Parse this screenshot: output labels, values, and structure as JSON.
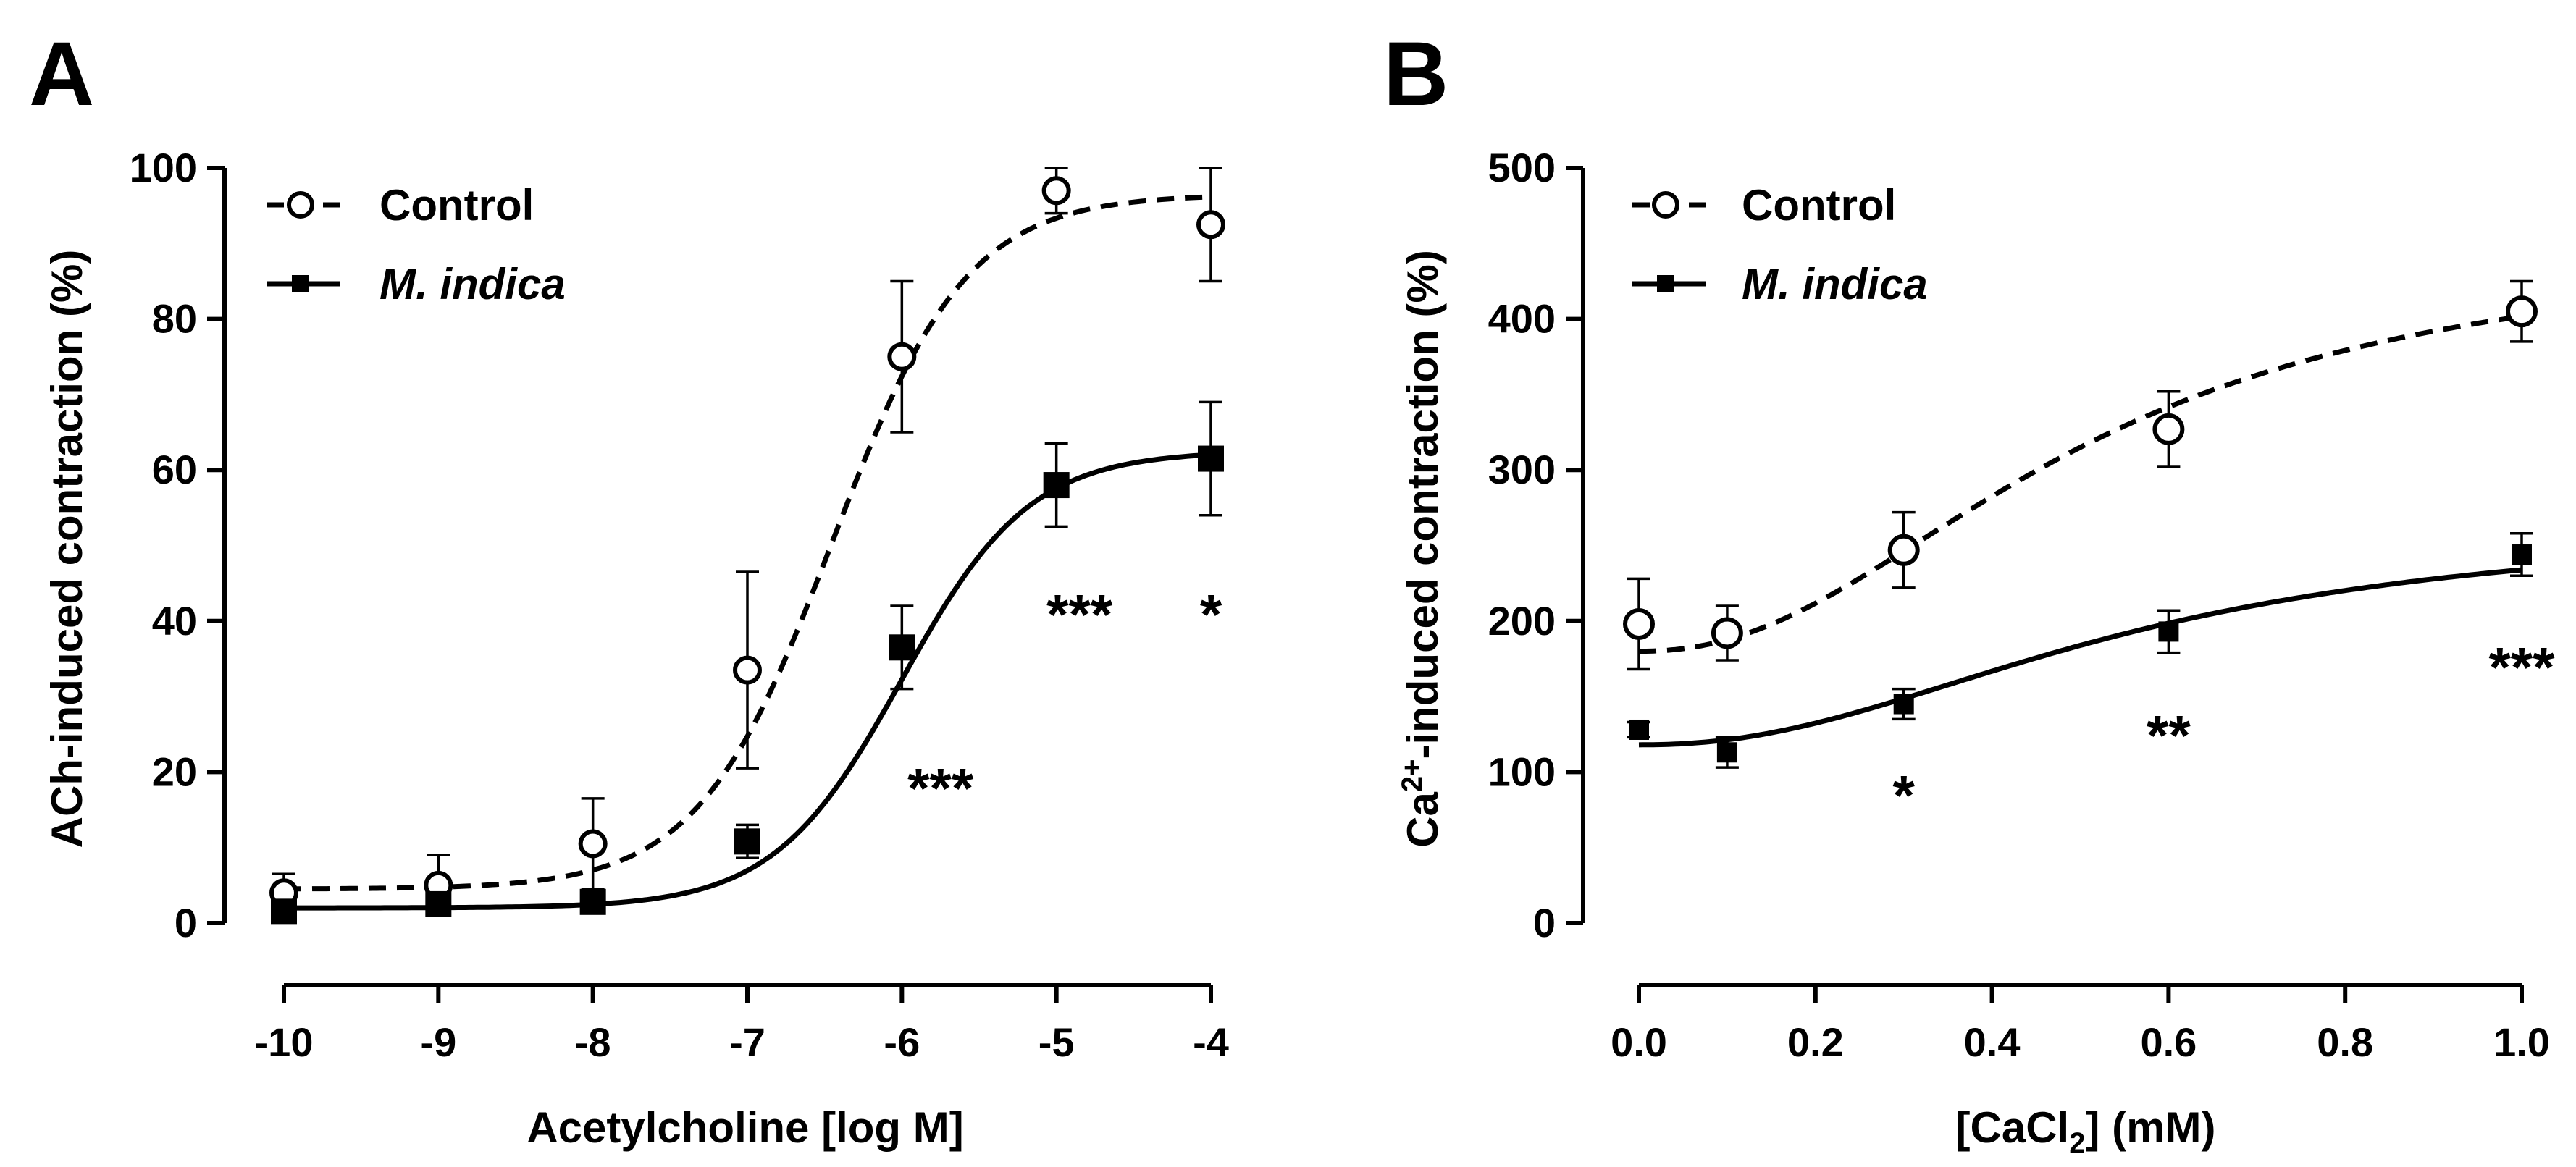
{
  "chart_data": [
    {
      "panel_label": "A",
      "type": "scatter",
      "title": "",
      "xlabel": "Acetylcholine [log M]",
      "ylabel": "ACh-induced contraction (%)",
      "xlim": [
        -10,
        -4
      ],
      "ylim": [
        0,
        100
      ],
      "xticks": [
        -10,
        -9,
        -8,
        -7,
        -6,
        -5,
        -4
      ],
      "yticks": [
        0,
        20,
        40,
        60,
        80,
        100
      ],
      "xtick_labels": [
        "-10",
        "-9",
        "-8",
        "-7",
        "-6",
        "-5",
        "-4"
      ],
      "ytick_labels": [
        "0",
        "20",
        "40",
        "60",
        "80",
        "100"
      ],
      "legend_position": "top-left",
      "series": [
        {
          "name": "Control",
          "marker": "open-circle",
          "line": "dashed",
          "italic": false,
          "x": [
            -10,
            -9,
            -8,
            -7,
            -6,
            -5,
            -4
          ],
          "y": [
            4,
            5,
            10.5,
            33.5,
            75,
            97,
            92.5
          ],
          "err": [
            2.5,
            4,
            6,
            13,
            10,
            3,
            7.5
          ],
          "fit": {
            "bottom": 4.5,
            "top": 96.5,
            "logEC50": -6.45,
            "hill": 1.0
          }
        },
        {
          "name": "M. indica",
          "marker": "filled-square",
          "line": "solid",
          "italic": true,
          "x": [
            -10,
            -9,
            -8,
            -7,
            -6,
            -5,
            -4
          ],
          "y": [
            1.5,
            2.5,
            2.8,
            10.8,
            36.5,
            58,
            61.5
          ],
          "err": [
            1.5,
            1.2,
            1.2,
            2.2,
            5.5,
            5.5,
            7.5
          ],
          "fit": {
            "bottom": 2,
            "top": 62.5,
            "logEC50": -6.0,
            "hill": 1.05
          }
        }
      ],
      "annotations": [
        {
          "text": "***",
          "x": -5.75,
          "y": 18
        },
        {
          "text": "***",
          "x": -4.85,
          "y": 41
        },
        {
          "text": "*",
          "x": -4,
          "y": 41
        }
      ]
    },
    {
      "panel_label": "B",
      "type": "scatter",
      "title": "",
      "xlabel": "[CaCl2] (mM)",
      "ylabel": "Ca2+-induced contraction (%)",
      "xlim": [
        0,
        1
      ],
      "ylim": [
        0,
        500
      ],
      "xticks": [
        0,
        0.2,
        0.4,
        0.6,
        0.8,
        1.0
      ],
      "yticks": [
        0,
        100,
        200,
        300,
        400,
        500
      ],
      "xtick_labels": [
        "0.0",
        "0.2",
        "0.4",
        "0.6",
        "0.8",
        "1.0"
      ],
      "ytick_labels": [
        "0",
        "100",
        "200",
        "300",
        "400",
        "500"
      ],
      "legend_position": "top-left",
      "series": [
        {
          "name": "Control",
          "marker": "open-circle",
          "line": "dashed",
          "italic": false,
          "x": [
            0,
            0.1,
            0.3,
            0.6,
            1.0
          ],
          "y": [
            198,
            192,
            247,
            327,
            405
          ],
          "err": [
            30,
            18,
            25,
            25,
            20
          ],
          "fit": {
            "bottom": 180,
            "top": 450,
            "ec50": 0.5,
            "hill": 2.2
          }
        },
        {
          "name": "M. indica",
          "marker": "filled-square",
          "line": "solid",
          "italic": true,
          "x": [
            0,
            0.1,
            0.3,
            0.6,
            1.0
          ],
          "y": [
            128,
            113,
            145,
            193,
            244
          ],
          "err": [
            5,
            10,
            10,
            14,
            14
          ],
          "fit": {
            "bottom": 118,
            "top": 265,
            "ec50": 0.55,
            "hill": 2.2
          }
        }
      ],
      "annotations": [
        {
          "text": "*",
          "x": 0.3,
          "y": 85
        },
        {
          "text": "**",
          "x": 0.6,
          "y": 125
        },
        {
          "text": "***",
          "x": 1.0,
          "y": 170
        }
      ]
    }
  ]
}
